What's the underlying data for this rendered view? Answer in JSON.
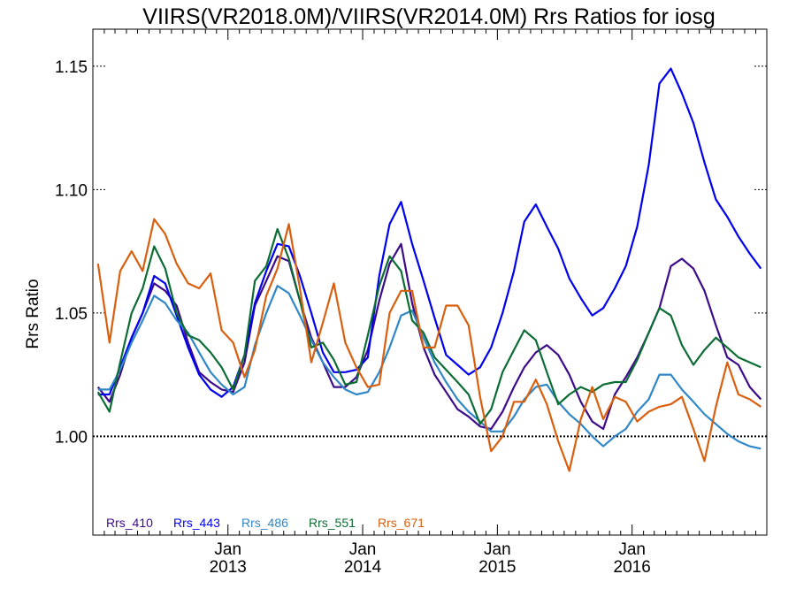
{
  "chart_data": {
    "type": "line",
    "title": "VIIRS(VR2018.0M)/VIIRS(VR2014.0M)  Rrs Ratios for iosg",
    "ylabel": "Rrs Ratio",
    "xlabel": "",
    "xlim": [
      "2012-01-01",
      "2016-12-31"
    ],
    "ylim": [
      0.96,
      1.165
    ],
    "yticks": [
      "1.00",
      "1.05",
      "1.10",
      "1.15"
    ],
    "ytick_values": [
      1.0,
      1.05,
      1.1,
      1.15
    ],
    "xticks": [
      {
        "date": "2013-01-01",
        "month": "Jan",
        "year": "2013"
      },
      {
        "date": "2014-01-01",
        "month": "Jan",
        "year": "2014"
      },
      {
        "date": "2015-01-01",
        "month": "Jan",
        "year": "2015"
      },
      {
        "date": "2016-01-01",
        "month": "Jan",
        "year": "2016"
      }
    ],
    "reference_line": 1.0,
    "grid": false,
    "legend_position": "bottom-left",
    "x": [
      "2012-01",
      "2012-02",
      "2012-03",
      "2012-04",
      "2012-05",
      "2012-06",
      "2012-07",
      "2012-08",
      "2012-09",
      "2012-10",
      "2012-11",
      "2012-12",
      "2013-01",
      "2013-02",
      "2013-03",
      "2013-04",
      "2013-05",
      "2013-06",
      "2013-07",
      "2013-08",
      "2013-09",
      "2013-10",
      "2013-11",
      "2013-12",
      "2014-01",
      "2014-02",
      "2014-03",
      "2014-04",
      "2014-05",
      "2014-06",
      "2014-07",
      "2014-08",
      "2014-09",
      "2014-10",
      "2014-11",
      "2014-12",
      "2015-01",
      "2015-02",
      "2015-03",
      "2015-04",
      "2015-05",
      "2015-06",
      "2015-07",
      "2015-08",
      "2015-09",
      "2015-10",
      "2015-11",
      "2015-12",
      "2016-01",
      "2016-02",
      "2016-03",
      "2016-04",
      "2016-05",
      "2016-06",
      "2016-07",
      "2016-08",
      "2016-09",
      "2016-10",
      "2016-11",
      "2016-12"
    ],
    "series": [
      {
        "name": "Rrs_410",
        "color": "#3d0b8a",
        "values": [
          1.02,
          1.014,
          1.025,
          1.04,
          1.05,
          1.062,
          1.059,
          1.053,
          1.038,
          1.026,
          1.022,
          1.019,
          1.018,
          1.03,
          1.053,
          1.063,
          1.073,
          1.071,
          1.055,
          1.04,
          1.03,
          1.02,
          1.02,
          1.024,
          1.035,
          1.055,
          1.07,
          1.078,
          1.054,
          1.036,
          1.025,
          1.018,
          1.011,
          1.008,
          1.004,
          1.003,
          1.01,
          1.02,
          1.028,
          1.034,
          1.037,
          1.033,
          1.025,
          1.014,
          1.006,
          1.003,
          1.017,
          1.024,
          1.032,
          1.042,
          1.052,
          1.069,
          1.072,
          1.068,
          1.059,
          1.045,
          1.032,
          1.029,
          1.02,
          1.015
        ]
      },
      {
        "name": "Rrs_443",
        "color": "#0000ee",
        "values": [
          1.017,
          1.017,
          1.028,
          1.04,
          1.05,
          1.065,
          1.062,
          1.049,
          1.036,
          1.025,
          1.019,
          1.016,
          1.02,
          1.033,
          1.054,
          1.067,
          1.078,
          1.077,
          1.065,
          1.05,
          1.034,
          1.026,
          1.026,
          1.027,
          1.032,
          1.065,
          1.086,
          1.095,
          1.078,
          1.063,
          1.048,
          1.033,
          1.029,
          1.025,
          1.028,
          1.036,
          1.05,
          1.067,
          1.087,
          1.094,
          1.085,
          1.076,
          1.064,
          1.056,
          1.049,
          1.052,
          1.06,
          1.069,
          1.085,
          1.11,
          1.143,
          1.149,
          1.139,
          1.127,
          1.111,
          1.096,
          1.089,
          1.081,
          1.074,
          1.068
        ]
      },
      {
        "name": "Rrs_486",
        "color": "#2f87c8",
        "values": [
          1.019,
          1.019,
          1.027,
          1.038,
          1.047,
          1.057,
          1.054,
          1.047,
          1.042,
          1.034,
          1.026,
          1.021,
          1.017,
          1.02,
          1.037,
          1.05,
          1.061,
          1.058,
          1.049,
          1.039,
          1.03,
          1.024,
          1.019,
          1.017,
          1.018,
          1.026,
          1.036,
          1.049,
          1.051,
          1.04,
          1.03,
          1.022,
          1.015,
          1.01,
          1.006,
          1.002,
          1.002,
          1.008,
          1.015,
          1.02,
          1.021,
          1.014,
          1.009,
          1.005,
          1.0,
          0.996,
          1.0,
          1.003,
          1.01,
          1.015,
          1.025,
          1.025,
          1.019,
          1.014,
          1.009,
          1.005,
          1.001,
          0.998,
          0.996,
          0.995
        ]
      },
      {
        "name": "Rrs_551",
        "color": "#0b6d33",
        "values": [
          1.018,
          1.01,
          1.03,
          1.05,
          1.06,
          1.077,
          1.068,
          1.05,
          1.041,
          1.039,
          1.034,
          1.028,
          1.019,
          1.033,
          1.063,
          1.069,
          1.084,
          1.072,
          1.055,
          1.036,
          1.038,
          1.031,
          1.021,
          1.022,
          1.041,
          1.061,
          1.073,
          1.067,
          1.047,
          1.042,
          1.032,
          1.027,
          1.022,
          1.017,
          1.005,
          1.011,
          1.026,
          1.035,
          1.043,
          1.039,
          1.026,
          1.013,
          1.017,
          1.02,
          1.018,
          1.021,
          1.022,
          1.022,
          1.031,
          1.042,
          1.052,
          1.049,
          1.037,
          1.029,
          1.035,
          1.04,
          1.036,
          1.032,
          1.03,
          1.028
        ]
      },
      {
        "name": "Rrs_671",
        "color": "#d95f0e",
        "values": [
          1.07,
          1.038,
          1.067,
          1.075,
          1.067,
          1.088,
          1.082,
          1.07,
          1.062,
          1.06,
          1.066,
          1.043,
          1.038,
          1.024,
          1.035,
          1.057,
          1.068,
          1.086,
          1.06,
          1.03,
          1.046,
          1.062,
          1.038,
          1.028,
          1.02,
          1.021,
          1.05,
          1.059,
          1.059,
          1.036,
          1.036,
          1.053,
          1.053,
          1.045,
          1.016,
          0.994,
          1.0,
          1.014,
          1.014,
          1.023,
          1.013,
          0.998,
          0.986,
          1.007,
          1.02,
          1.007,
          1.016,
          1.014,
          1.006,
          1.01,
          1.012,
          1.013,
          1.016,
          1.003,
          0.99,
          1.012,
          1.03,
          1.017,
          1.015,
          1.012
        ]
      }
    ]
  }
}
